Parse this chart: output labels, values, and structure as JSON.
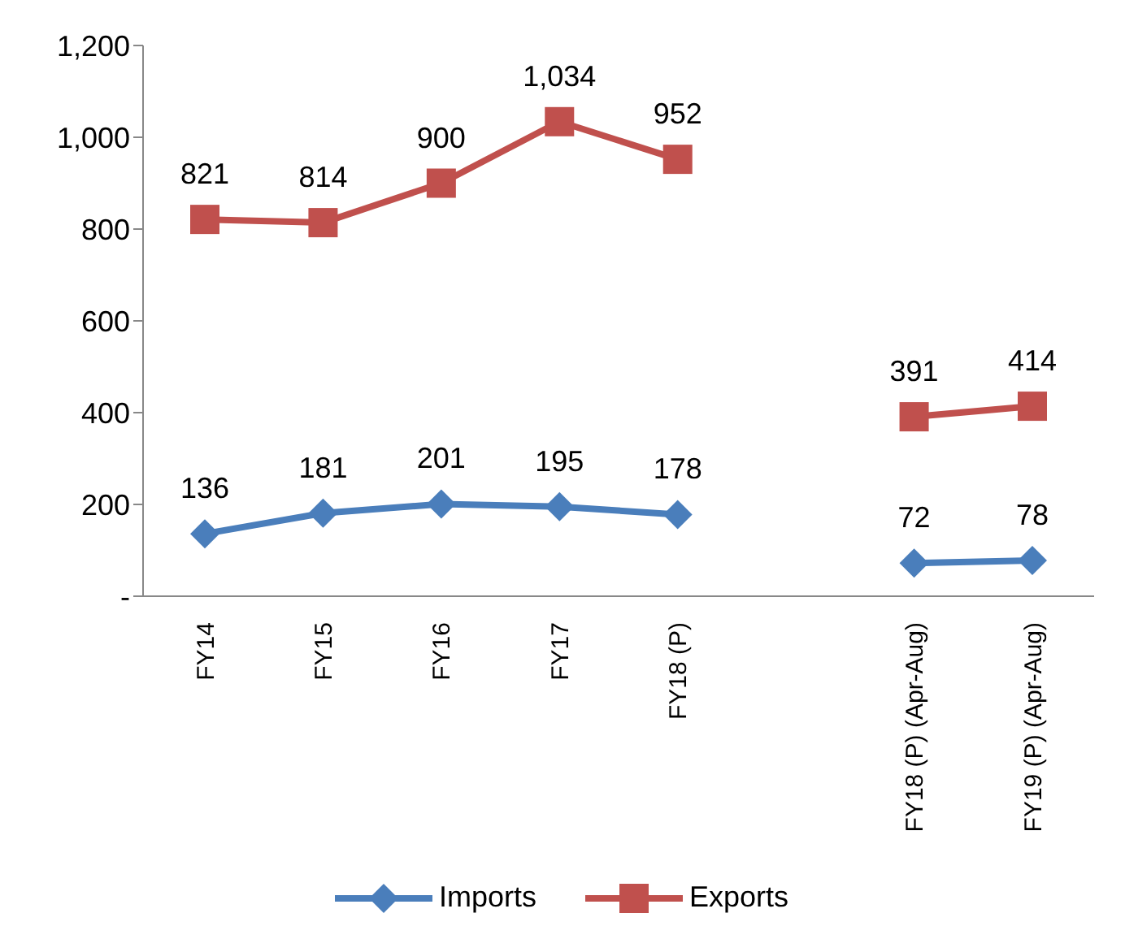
{
  "chart_data": {
    "type": "line",
    "categories": [
      "FY14",
      "FY15",
      "FY16",
      "FY17",
      "FY18 (P)",
      null,
      "FY18 (P) (Apr-Aug)",
      "FY19 (P) (Apr-Aug)"
    ],
    "series": [
      {
        "name": "Imports",
        "color": "#4a7ebb",
        "marker": "diamond",
        "values": [
          136,
          181,
          201,
          195,
          178,
          null,
          72,
          78
        ],
        "value_labels": [
          "136",
          "181",
          "201",
          "195",
          "178",
          null,
          "72",
          "78"
        ]
      },
      {
        "name": "Exports",
        "color": "#c0504d",
        "marker": "square",
        "values": [
          821,
          814,
          900,
          1034,
          952,
          null,
          391,
          414
        ],
        "value_labels": [
          "821",
          "814",
          "900",
          "1,034",
          "952",
          null,
          "391",
          "414"
        ]
      }
    ],
    "ylim": [
      0,
      1200
    ],
    "yticks": [
      {
        "value": 0,
        "label": "-"
      },
      200,
      400,
      600,
      800,
      {
        "value": 1000,
        "label": "1,000"
      },
      {
        "value": 1200,
        "label": "1,200"
      }
    ],
    "grid": false,
    "legend": "bottom"
  }
}
